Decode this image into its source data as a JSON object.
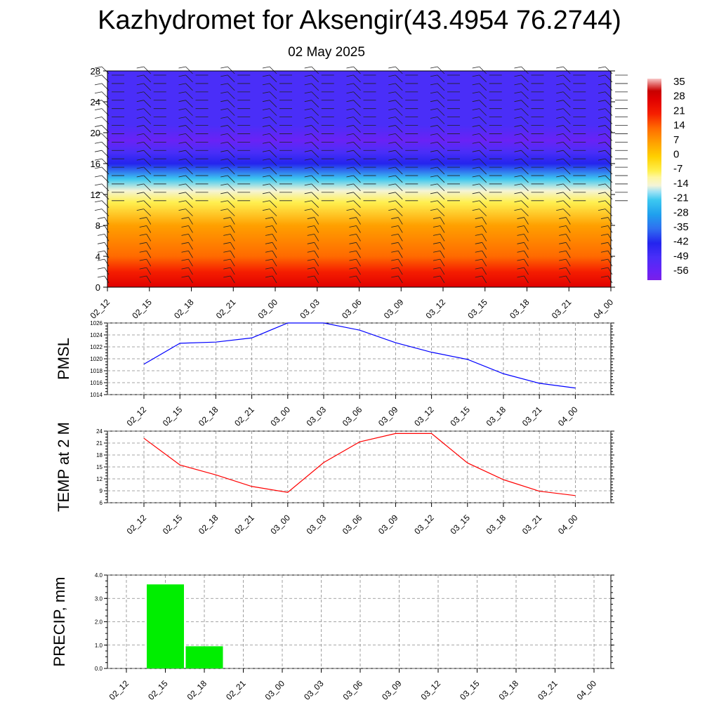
{
  "page": {
    "title": "Kazhydromet for Aksengir(43.4954 76.2744)",
    "subtitle": "02 May 2025"
  },
  "colors": {
    "pmsl_line": "#0000ff",
    "temp_line": "#ff0000",
    "precip_bar": "#00ee00",
    "grid": "#888888"
  },
  "chart_data": [
    {
      "type": "heatmap",
      "name": "temperature-wind-cross-section",
      "x": [
        "02_12",
        "02_15",
        "02_18",
        "02_21",
        "03_00",
        "03_03",
        "03_06",
        "03_09",
        "03_12",
        "03_15",
        "03_18",
        "03_21",
        "04_00"
      ],
      "ylim": [
        0,
        28
      ],
      "yticks": [
        0,
        4,
        8,
        12,
        16,
        20,
        24,
        28
      ],
      "colorbar": {
        "labels": [
          "35",
          "28",
          "21",
          "14",
          "7",
          "0",
          "-7",
          "-14",
          "-21",
          "-28",
          "-35",
          "-42",
          "-49",
          "-56"
        ],
        "values": [
          35,
          28,
          21,
          14,
          7,
          0,
          -7,
          -14,
          -21,
          -28,
          -35,
          -42,
          -49,
          -56
        ],
        "range": [
          -60,
          38
        ]
      },
      "temperature_profile": [
        {
          "y": 0,
          "value": 26
        },
        {
          "y": 2,
          "value": 22
        },
        {
          "y": 4,
          "value": 15
        },
        {
          "y": 8,
          "value": 5
        },
        {
          "y": 11,
          "value": -5
        },
        {
          "y": 12.5,
          "value": -14
        },
        {
          "y": 14,
          "value": -24
        },
        {
          "y": 16,
          "value": -40
        },
        {
          "y": 17.5,
          "value": -52
        },
        {
          "y": 19,
          "value": -57
        },
        {
          "y": 21,
          "value": -52
        },
        {
          "y": 24,
          "value": -49
        },
        {
          "y": 28,
          "value": -48
        }
      ],
      "wind_barbs": "present"
    },
    {
      "type": "line",
      "name": "pmsl",
      "ylabel": "PMSL",
      "x": [
        "02_12",
        "02_15",
        "02_18",
        "02_21",
        "03_00",
        "03_03",
        "03_06",
        "03_09",
        "03_12",
        "03_15",
        "03_18",
        "03_21",
        "04_00"
      ],
      "values": [
        1019.1,
        1022.6,
        1022.8,
        1023.5,
        1026.0,
        1026.0,
        1024.8,
        1022.7,
        1021.1,
        1019.9,
        1017.5,
        1015.9,
        1015.1
      ],
      "ylim": [
        1014,
        1026
      ],
      "yticks": [
        1014,
        1016,
        1018,
        1020,
        1022,
        1024,
        1026
      ],
      "grid": true
    },
    {
      "type": "line",
      "name": "temp2m",
      "ylabel": "TEMP at 2 M",
      "x": [
        "02_12",
        "02_15",
        "02_18",
        "02_21",
        "03_00",
        "03_03",
        "03_06",
        "03_09",
        "03_12",
        "03_15",
        "03_18",
        "03_21",
        "04_00"
      ],
      "values": [
        22.2,
        15.5,
        13.0,
        10.1,
        8.6,
        16.1,
        21.3,
        23.4,
        23.4,
        16.0,
        11.8,
        8.9,
        7.8
      ],
      "ylim": [
        6,
        24
      ],
      "yticks": [
        6,
        9,
        12,
        15,
        18,
        21,
        24
      ],
      "grid": true
    },
    {
      "type": "bar",
      "name": "precip",
      "ylabel": "PRECIP, mm",
      "categories": [
        "02_12",
        "02_15",
        "02_18",
        "02_21",
        "03_00",
        "03_03",
        "03_06",
        "03_09",
        "03_12",
        "03_15",
        "03_18",
        "03_21",
        "04_00"
      ],
      "values": [
        0,
        3.6,
        0.95,
        0,
        0,
        0,
        0,
        0,
        0,
        0,
        0,
        0,
        0
      ],
      "ylim": [
        0,
        4
      ],
      "yticks": [
        "0.0",
        "1.0",
        "2.0",
        "3.0",
        "4.0"
      ],
      "grid": true
    }
  ]
}
